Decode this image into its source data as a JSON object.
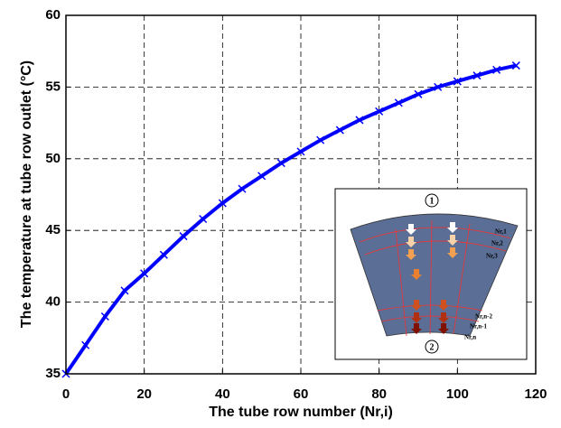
{
  "chart_data": {
    "type": "line",
    "x_label": "The tube row number (Nr,i)",
    "y_label": "The temperature at tube row outlet (°C)",
    "xlim": [
      0,
      120
    ],
    "ylim": [
      35,
      60
    ],
    "xticks": [
      0,
      20,
      40,
      60,
      80,
      100,
      120
    ],
    "yticks": [
      35,
      40,
      45,
      50,
      55,
      60
    ],
    "grid": true,
    "series": [
      {
        "color": "#0000ff",
        "x": [
          0,
          5,
          10,
          15,
          20,
          25,
          30,
          35,
          40,
          45,
          50,
          55,
          60,
          65,
          70,
          75,
          80,
          85,
          90,
          95,
          100,
          105,
          110,
          115
        ],
        "values": [
          35,
          37,
          39,
          40.8,
          42,
          43.3,
          44.6,
          45.8,
          46.9,
          47.9,
          48.8,
          49.7,
          50.5,
          51.3,
          52,
          52.7,
          53.3,
          53.9,
          54.5,
          55,
          55.4,
          55.8,
          56.2,
          56.5
        ]
      }
    ],
    "inset_labels": [
      "1",
      "2",
      "Nr,1",
      "Nr,2",
      "Nr,3",
      "Nr,n-2",
      "Nr,n-1",
      "Nr,n"
    ]
  }
}
